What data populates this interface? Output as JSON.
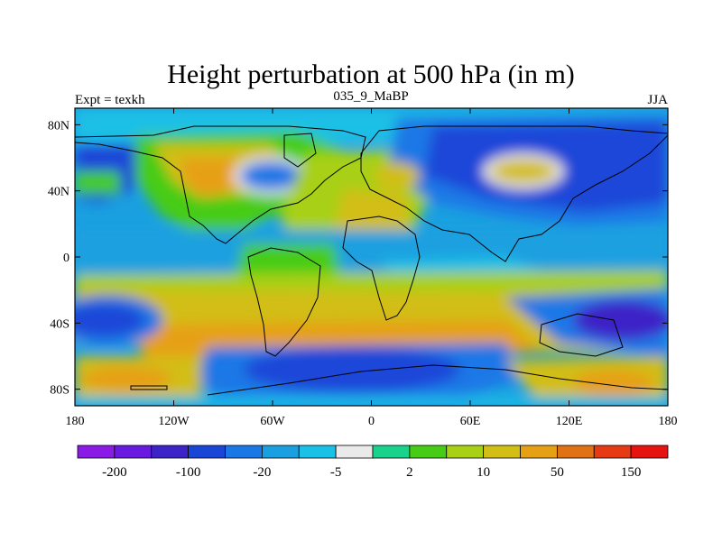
{
  "figure": {
    "title": "Height perturbation at 500 hPa (in m)",
    "left_label": "Expt = texkh",
    "center_label": "035_9_MaBP",
    "right_label": "JJA"
  },
  "map": {
    "projection": "cylindrical-equidistant",
    "lon_range": [
      -180,
      180
    ],
    "lat_range": [
      -90,
      90
    ],
    "x_ticks": [
      {
        "value": -180,
        "label": "180"
      },
      {
        "value": -120,
        "label": "120W"
      },
      {
        "value": -60,
        "label": "60W"
      },
      {
        "value": 0,
        "label": "0"
      },
      {
        "value": 60,
        "label": "60E"
      },
      {
        "value": 120,
        "label": "120E"
      },
      {
        "value": 180,
        "label": "180"
      }
    ],
    "y_ticks": [
      {
        "value": 80,
        "label": "80N"
      },
      {
        "value": 40,
        "label": "40N"
      },
      {
        "value": 0,
        "label": "0"
      },
      {
        "value": -40,
        "label": "40S"
      },
      {
        "value": -80,
        "label": "80S"
      }
    ]
  },
  "colorbar": {
    "colors": [
      "#8a1ae6",
      "#6a1ae0",
      "#3c24c8",
      "#1a46d8",
      "#1a78e6",
      "#1aa0e0",
      "#1ac0e6",
      "#eaeaea",
      "#1ad28c",
      "#46cc14",
      "#a8d014",
      "#d2be14",
      "#e6a014",
      "#e07214",
      "#e63a14",
      "#e61410"
    ],
    "labels": [
      {
        "boundary": 1,
        "text": "-200"
      },
      {
        "boundary": 3,
        "text": "-100"
      },
      {
        "boundary": 5,
        "text": "-20"
      },
      {
        "boundary": 7,
        "text": "-5"
      },
      {
        "boundary": 9,
        "text": "2"
      },
      {
        "boundary": 11,
        "text": "10"
      },
      {
        "boundary": 13,
        "text": "50"
      },
      {
        "boundary": 15,
        "text": "150"
      }
    ]
  }
}
